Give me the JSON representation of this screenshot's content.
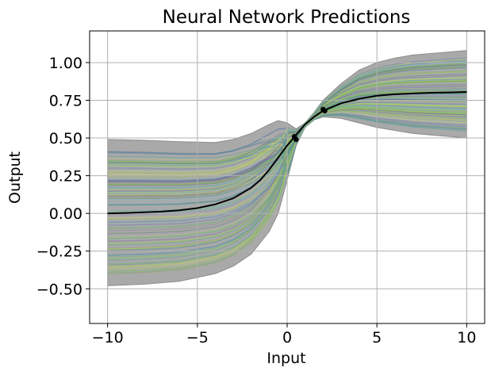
{
  "chart_data": {
    "type": "line",
    "title": "Neural Network Predictions",
    "xlabel": "Input",
    "ylabel": "Output",
    "xlim": [
      -11,
      11
    ],
    "ylim": [
      -0.73,
      1.21
    ],
    "x_ticks": [
      -10,
      -5,
      0,
      5,
      10
    ],
    "x_tick_labels": [
      "−10",
      "−5",
      "0",
      "5",
      "10"
    ],
    "y_ticks": [
      -0.5,
      -0.25,
      0.0,
      0.25,
      0.5,
      0.75,
      1.0
    ],
    "y_tick_labels": [
      "−0.50",
      "−0.25",
      "0.00",
      "0.25",
      "0.50",
      "0.75",
      "1.00"
    ],
    "grid": true,
    "mean_curve": {
      "color": "#000000",
      "x": [
        -10,
        -9,
        -8,
        -7,
        -6,
        -5,
        -4,
        -3,
        -2,
        -1.5,
        -1,
        -0.5,
        0,
        0.5,
        1,
        1.5,
        2,
        3,
        4,
        5,
        6,
        7,
        8,
        9,
        10
      ],
      "y": [
        0.0,
        0.003,
        0.007,
        0.012,
        0.02,
        0.035,
        0.06,
        0.1,
        0.17,
        0.22,
        0.29,
        0.37,
        0.45,
        0.52,
        0.59,
        0.64,
        0.68,
        0.73,
        0.76,
        0.78,
        0.79,
        0.795,
        0.8,
        0.802,
        0.805
      ]
    },
    "uncertainty_band": {
      "color": "#a9a9a9",
      "x": [
        -10,
        -8,
        -6,
        -4,
        -3,
        -2,
        -1,
        -0.5,
        0,
        0.5,
        1,
        1.5,
        2,
        3,
        4,
        5,
        6,
        7,
        8,
        9,
        10
      ],
      "upper": [
        0.49,
        0.485,
        0.475,
        0.47,
        0.49,
        0.53,
        0.59,
        0.615,
        0.6,
        0.56,
        0.6,
        0.67,
        0.75,
        0.86,
        0.95,
        1.0,
        1.03,
        1.05,
        1.06,
        1.07,
        1.08
      ],
      "lower": [
        -0.48,
        -0.47,
        -0.45,
        -0.4,
        -0.35,
        -0.27,
        -0.12,
        0.0,
        0.22,
        0.45,
        0.57,
        0.62,
        0.64,
        0.63,
        0.6,
        0.57,
        0.55,
        0.53,
        0.52,
        0.51,
        0.5
      ]
    },
    "sample_lines": {
      "count": 120,
      "colors": [
        "#9ccc3a",
        "#6fbf4a",
        "#3e9b8a",
        "#4a6fa5",
        "#6a5a9a",
        "#b8d44a",
        "#d6e45a",
        "#5aa5a0",
        "#7fb6c9",
        "#8a7fb0"
      ],
      "opacity": 0.35
    },
    "training_points": {
      "color": "#000000",
      "x": [
        0.4,
        0.5,
        2.0,
        2.1
      ],
      "y": [
        0.51,
        0.49,
        0.69,
        0.68
      ]
    }
  }
}
